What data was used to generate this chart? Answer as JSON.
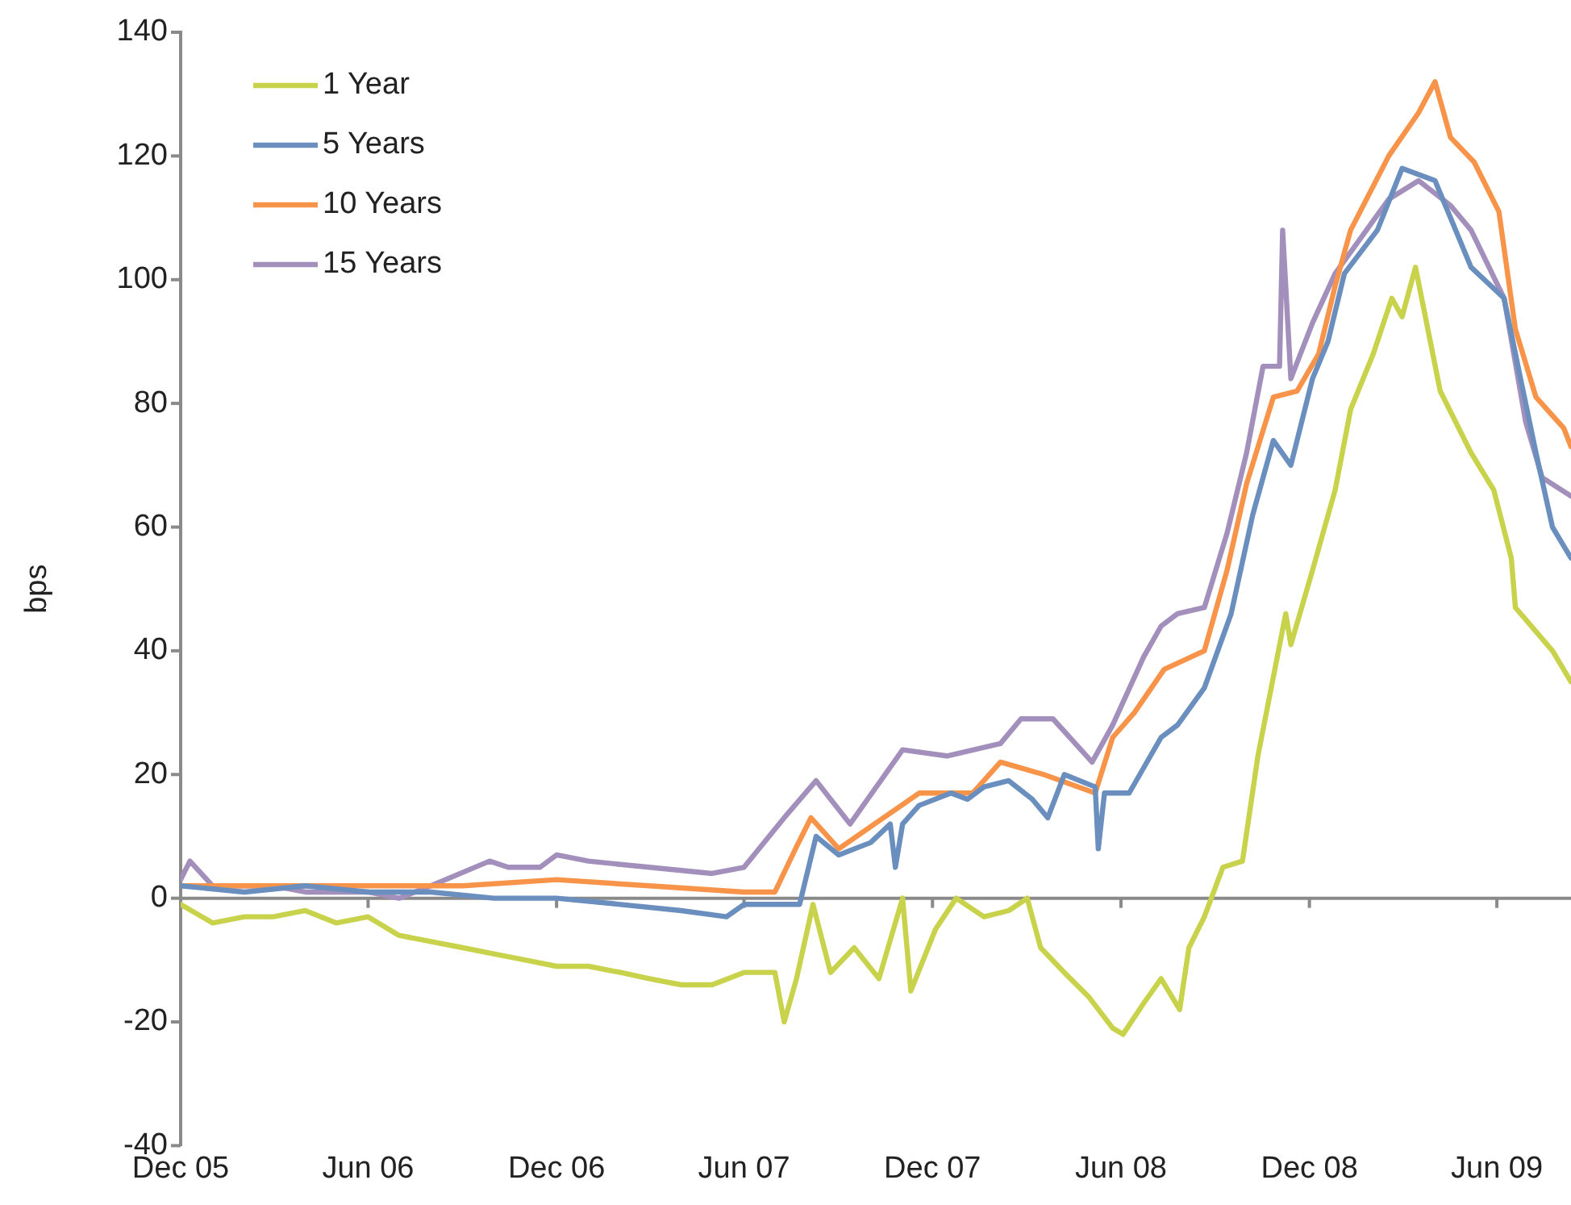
{
  "chart_data": {
    "type": "line",
    "ylabel": "bps",
    "legend": "top left",
    "grid": false,
    "marker": "none",
    "line_style": "solid",
    "xlim": [
      "2005-12-01",
      "2009-08-12"
    ],
    "xticks": [
      {
        "value": "2005-12-01",
        "label": "Dec 05"
      },
      {
        "value": "2006-06-01",
        "label": "Jun 06"
      },
      {
        "value": "2006-12-01",
        "label": "Dec 06"
      },
      {
        "value": "2007-06-01",
        "label": "Jun 07"
      },
      {
        "value": "2007-12-01",
        "label": "Dec 07"
      },
      {
        "value": "2008-06-01",
        "label": "Jun 08"
      },
      {
        "value": "2008-12-01",
        "label": "Dec 08"
      },
      {
        "value": "2009-06-01",
        "label": "Jun 09"
      }
    ],
    "ref_lines": [
      {
        "axis": "y",
        "value": 0,
        "color": "#8a8a8a"
      }
    ],
    "ylim": [
      -40,
      140
    ],
    "yticks": [
      -40,
      -20,
      0,
      20,
      40,
      60,
      80,
      100,
      120,
      140
    ],
    "series": [
      {
        "name": "1 Year",
        "color": "#c8d24a",
        "x": [
          "2005-12-01",
          "2006-01-01",
          "2006-02-01",
          "2006-03-01",
          "2006-04-01",
          "2006-05-01",
          "2006-06-01",
          "2006-07-01",
          "2006-08-01",
          "2006-09-01",
          "2006-10-01",
          "2006-11-01",
          "2006-12-01",
          "2007-01-01",
          "2007-02-01",
          "2007-03-01",
          "2007-04-01",
          "2007-05-01",
          "2007-06-01",
          "2007-07-01",
          "2007-07-10",
          "2007-07-22",
          "2007-08-07",
          "2007-08-24",
          "2007-09-16",
          "2007-10-10",
          "2007-11-02",
          "2007-11-10",
          "2007-12-04",
          "2007-12-24",
          "2008-01-20",
          "2008-02-13",
          "2008-03-02",
          "2008-03-15",
          "2008-04-07",
          "2008-05-01",
          "2008-05-24",
          "2008-06-03",
          "2008-06-23",
          "2008-07-10",
          "2008-07-28",
          "2008-08-06",
          "2008-08-21",
          "2008-09-08",
          "2008-09-27",
          "2008-10-12",
          "2008-11-08",
          "2008-11-13",
          "2008-12-04",
          "2008-12-26",
          "2009-01-10",
          "2009-02-01",
          "2009-02-19",
          "2009-03-01",
          "2009-03-14",
          "2009-04-07",
          "2009-05-07",
          "2009-05-29",
          "2009-06-15",
          "2009-06-19",
          "2009-07-25",
          "2009-08-12"
        ],
        "values": [
          -1,
          -4,
          -3,
          -3,
          -2,
          -4,
          -3,
          -6,
          -7,
          -8,
          -9,
          -10,
          -11,
          -11,
          -12,
          -13,
          -14,
          -14,
          -12,
          -12,
          -20,
          -13,
          -1,
          -12,
          -8,
          -13,
          0,
          -15,
          -5,
          0,
          -3,
          -2,
          0,
          -8,
          -12,
          -16,
          -21,
          -22,
          -17,
          -13,
          -18,
          -8,
          -3,
          5,
          6,
          23,
          46,
          41,
          53,
          66,
          79,
          88,
          97,
          94,
          102,
          82,
          72,
          66,
          55,
          47,
          40,
          35
        ]
      },
      {
        "name": "5 Years",
        "color": "#6a8fbf",
        "x": [
          "2005-12-01",
          "2006-02-01",
          "2006-04-01",
          "2006-06-01",
          "2006-08-01",
          "2006-10-01",
          "2006-12-01",
          "2007-02-01",
          "2007-04-01",
          "2007-05-15",
          "2007-06-01",
          "2007-07-01",
          "2007-07-25",
          "2007-08-10",
          "2007-09-01",
          "2007-10-02",
          "2007-10-21",
          "2007-10-26",
          "2007-11-02",
          "2007-11-18",
          "2007-12-19",
          "2008-01-04",
          "2008-01-20",
          "2008-02-13",
          "2008-03-07",
          "2008-03-22",
          "2008-04-07",
          "2008-05-07",
          "2008-05-10",
          "2008-05-16",
          "2008-06-09",
          "2008-07-10",
          "2008-07-26",
          "2008-08-21",
          "2008-09-16",
          "2008-10-07",
          "2008-10-27",
          "2008-11-13",
          "2008-12-04",
          "2008-12-19",
          "2009-01-04",
          "2009-02-05",
          "2009-03-01",
          "2009-04-02",
          "2009-04-17",
          "2009-05-07",
          "2009-06-08",
          "2009-06-24",
          "2009-07-09",
          "2009-07-25",
          "2009-08-12"
        ],
        "values": [
          2,
          1,
          2,
          1,
          1,
          0,
          0,
          -1,
          -2,
          -3,
          -1,
          -1,
          -1,
          10,
          7,
          9,
          12,
          5,
          12,
          15,
          17,
          16,
          18,
          19,
          16,
          13,
          20,
          18,
          8,
          17,
          17,
          26,
          28,
          34,
          46,
          62,
          74,
          70,
          84,
          90,
          101,
          108,
          118,
          116,
          110,
          102,
          97,
          84,
          72,
          60,
          55
        ]
      },
      {
        "name": "10 Years",
        "color": "#f7944a",
        "x": [
          "2005-12-01",
          "2006-03-01",
          "2006-06-01",
          "2006-09-01",
          "2006-12-01",
          "2007-03-01",
          "2007-06-01",
          "2007-07-01",
          "2007-07-21",
          "2007-08-05",
          "2007-09-01",
          "2007-10-23",
          "2007-11-18",
          "2008-01-09",
          "2008-02-05",
          "2008-03-18",
          "2008-05-07",
          "2008-05-24",
          "2008-06-14",
          "2008-07-13",
          "2008-08-21",
          "2008-09-12",
          "2008-10-01",
          "2008-10-27",
          "2008-11-19",
          "2008-12-10",
          "2008-12-26",
          "2009-01-10",
          "2009-02-16",
          "2009-03-17",
          "2009-04-02",
          "2009-04-17",
          "2009-05-10",
          "2009-06-03",
          "2009-06-19",
          "2009-07-09",
          "2009-08-05",
          "2009-08-12"
        ],
        "values": [
          2,
          2,
          2,
          2,
          3,
          2,
          1,
          1,
          8,
          13,
          8,
          14,
          17,
          17,
          22,
          20,
          17,
          26,
          30,
          37,
          40,
          53,
          67,
          81,
          82,
          88,
          99,
          108,
          120,
          127,
          132,
          123,
          119,
          111,
          92,
          81,
          76,
          73
        ]
      },
      {
        "name": "15 Years",
        "color": "#a38fbb",
        "x": [
          "2005-12-01",
          "2005-12-10",
          "2006-01-01",
          "2006-03-01",
          "2006-04-01",
          "2006-06-01",
          "2006-07-01",
          "2006-08-01",
          "2006-09-27",
          "2006-10-15",
          "2006-11-15",
          "2006-12-01",
          "2007-01-01",
          "2007-03-01",
          "2007-05-01",
          "2007-06-01",
          "2007-07-10",
          "2007-08-10",
          "2007-09-12",
          "2007-11-02",
          "2007-12-15",
          "2008-02-05",
          "2008-02-25",
          "2008-03-27",
          "2008-05-04",
          "2008-05-24",
          "2008-06-23",
          "2008-07-10",
          "2008-07-26",
          "2008-08-21",
          "2008-09-12",
          "2008-10-01",
          "2008-10-17",
          "2008-11-02",
          "2008-11-05",
          "2008-11-13",
          "2008-12-04",
          "2008-12-26",
          "2009-02-16",
          "2009-03-17",
          "2009-04-17",
          "2009-05-07",
          "2009-06-08",
          "2009-06-29",
          "2009-07-15",
          "2009-08-12"
        ],
        "values": [
          3,
          6,
          2,
          2,
          1,
          1,
          0,
          2,
          6,
          5,
          5,
          7,
          6,
          5,
          4,
          5,
          13,
          19,
          12,
          24,
          23,
          25,
          29,
          29,
          22,
          28,
          39,
          44,
          46,
          47,
          59,
          72,
          86,
          86,
          108,
          84,
          93,
          101,
          113,
          116,
          112,
          108,
          97,
          77,
          68,
          65
        ]
      }
    ]
  }
}
